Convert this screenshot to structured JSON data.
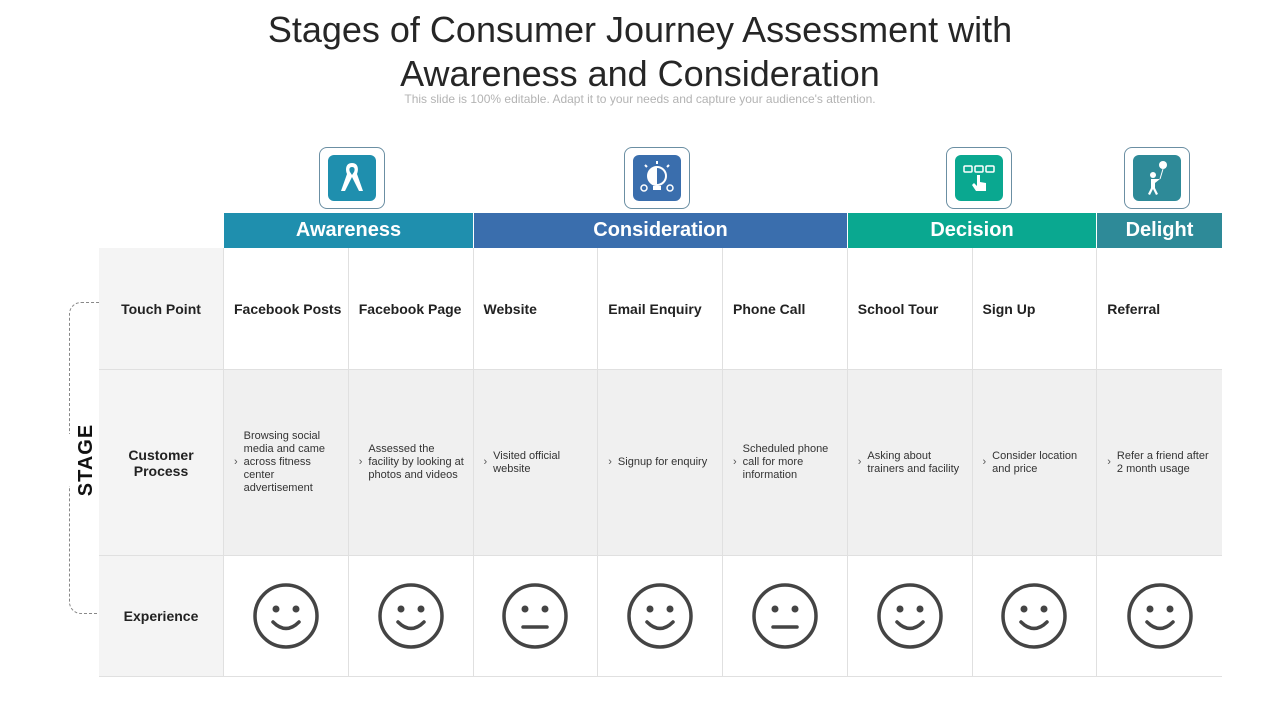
{
  "slide": {
    "title_line1": "Stages of Consumer Journey Assessment with",
    "title_line2": "Awareness and Consideration",
    "subtitle": "This slide is 100% editable. Adapt it to your needs and capture your audience's attention."
  },
  "stages": [
    {
      "label": "Awareness",
      "color": "#1f8fae",
      "icon": "ribbon-icon"
    },
    {
      "label": "Consideration",
      "color": "#3a6ead",
      "icon": "lightbulb-icon"
    },
    {
      "label": "Decision",
      "color": "#0aa890",
      "icon": "touch-select-icon"
    },
    {
      "label": "Delight",
      "color": "#2e8a98",
      "icon": "person-balloon-icon"
    }
  ],
  "side_label": "STAGE",
  "rows": {
    "touch_point": "Touch Point",
    "customer_process": "Customer Process",
    "experience": "Experience"
  },
  "columns": [
    {
      "touch_point": "Facebook Posts",
      "process": "Browsing social media and came across fitness center advertisement",
      "experience": "happy"
    },
    {
      "touch_point": "Facebook Page",
      "process": "Assessed the facility by looking at photos and videos",
      "experience": "happy"
    },
    {
      "touch_point": "Website",
      "process": "Visited official website",
      "experience": "neutral"
    },
    {
      "touch_point": "Email Enquiry",
      "process": "Signup for enquiry",
      "experience": "happy"
    },
    {
      "touch_point": "Phone Call",
      "process": "Scheduled phone call for more information",
      "experience": "neutral"
    },
    {
      "touch_point": "School Tour",
      "process": "Asking about trainers and facility",
      "experience": "happy"
    },
    {
      "touch_point": "Sign Up",
      "process": "Consider location and price",
      "experience": "happy"
    },
    {
      "touch_point": "Referral",
      "process": "Refer a friend after 2 month usage",
      "experience": "happy"
    }
  ]
}
